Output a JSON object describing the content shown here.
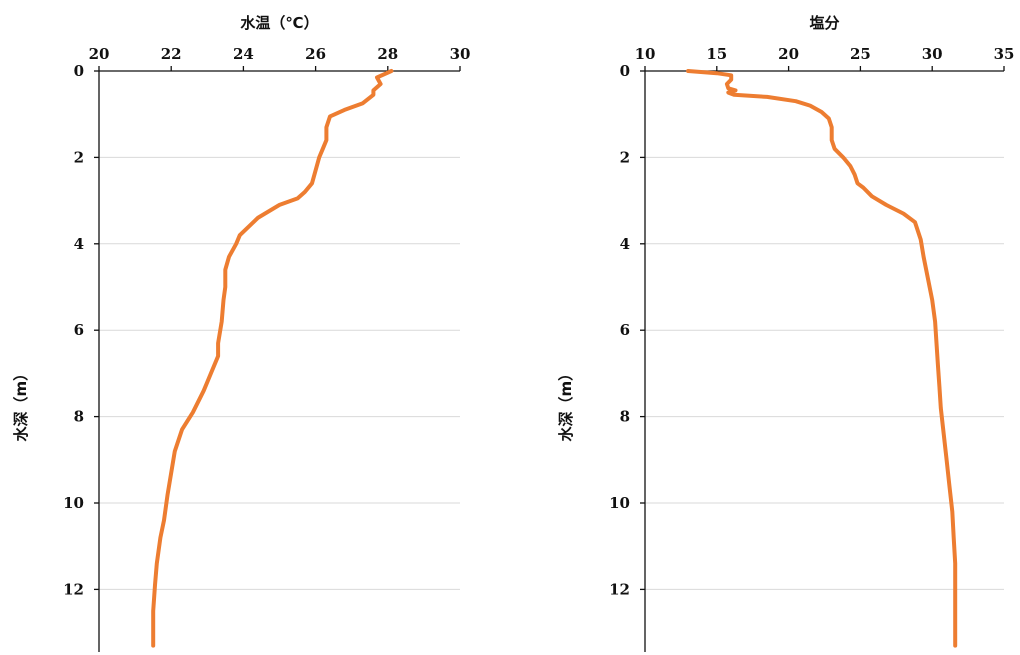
{
  "chart_data": [
    {
      "type": "line",
      "orientation": "depth-profile",
      "title": "",
      "xlabel": "水温（℃）",
      "ylabel": "水深（m）",
      "xlim": [
        20,
        30
      ],
      "ylim": [
        0,
        13.4
      ],
      "xticks": [
        "20",
        "22",
        "24",
        "26",
        "28",
        "30"
      ],
      "yticks": [
        "0",
        "2",
        "4",
        "6",
        "8",
        "10",
        "12"
      ],
      "x_axis_position": "top",
      "y_axis_inverted": true,
      "grid": "horizontal",
      "color": "#ed7d31",
      "series": [
        {
          "x": [
            28.1,
            27.7,
            27.8,
            27.6,
            27.6,
            27.3,
            26.8,
            26.4,
            26.3,
            26.3,
            26.2,
            26.1,
            26.0,
            25.9,
            25.7,
            25.5,
            25.0,
            24.4,
            23.9,
            23.8,
            23.6,
            23.5,
            23.5,
            23.45,
            23.4,
            23.3,
            23.3,
            23.1,
            22.9,
            22.6,
            22.3,
            22.1,
            22.0,
            21.9,
            21.8,
            21.7,
            21.6,
            21.55,
            21.5,
            21.5
          ],
          "y": [
            0.0,
            0.15,
            0.3,
            0.45,
            0.55,
            0.75,
            0.9,
            1.05,
            1.3,
            1.6,
            1.8,
            2.0,
            2.3,
            2.6,
            2.8,
            2.95,
            3.1,
            3.4,
            3.8,
            4.0,
            4.3,
            4.6,
            5.0,
            5.3,
            5.8,
            6.3,
            6.6,
            7.0,
            7.4,
            7.9,
            8.3,
            8.8,
            9.3,
            9.8,
            10.4,
            10.8,
            11.4,
            11.9,
            12.5,
            13.3
          ]
        }
      ]
    },
    {
      "type": "line",
      "orientation": "depth-profile",
      "title": "",
      "xlabel": "塩分",
      "ylabel": "水深（m）",
      "xlim": [
        10,
        35
      ],
      "ylim": [
        0,
        13.4
      ],
      "xticks": [
        "10",
        "15",
        "20",
        "25",
        "30",
        "35"
      ],
      "yticks": [
        "0",
        "2",
        "4",
        "6",
        "8",
        "10",
        "12"
      ],
      "x_axis_position": "top",
      "y_axis_inverted": true,
      "grid": "horizontal",
      "color": "#ed7d31",
      "series": [
        {
          "x": [
            13.0,
            15.0,
            16.0,
            16.0,
            15.7,
            15.8,
            16.3,
            15.8,
            16.2,
            18.5,
            20.5,
            21.5,
            22.3,
            22.8,
            23.0,
            23.0,
            23.2,
            23.8,
            24.3,
            24.6,
            24.8,
            25.2,
            25.8,
            26.8,
            28.0,
            28.8,
            29.2,
            29.4,
            29.7,
            30.0,
            30.2,
            30.3,
            30.4,
            30.5,
            30.6,
            30.8,
            31.0,
            31.2,
            31.4,
            31.5,
            31.6,
            31.6,
            31.6
          ],
          "y": [
            0.0,
            0.05,
            0.1,
            0.2,
            0.3,
            0.4,
            0.45,
            0.5,
            0.55,
            0.6,
            0.7,
            0.8,
            0.95,
            1.1,
            1.3,
            1.6,
            1.8,
            2.0,
            2.2,
            2.4,
            2.6,
            2.7,
            2.9,
            3.1,
            3.3,
            3.5,
            3.9,
            4.3,
            4.8,
            5.3,
            5.8,
            6.3,
            6.8,
            7.3,
            7.8,
            8.4,
            9.0,
            9.6,
            10.2,
            10.8,
            11.4,
            12.2,
            13.3
          ]
        }
      ]
    }
  ]
}
